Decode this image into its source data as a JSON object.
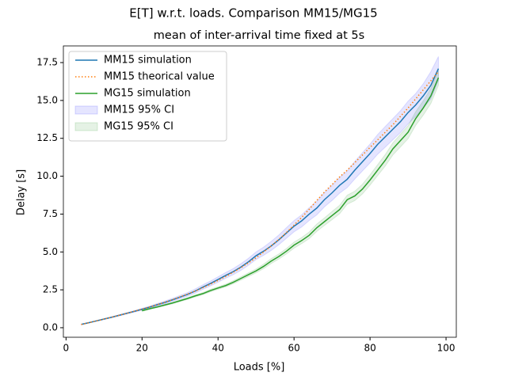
{
  "chart_data": {
    "type": "line",
    "suptitle": "E[T] w.r.t. loads. Comparison MM15/MG15",
    "title": "mean of inter-arrival time fixed at 5s",
    "xlabel": "Loads [%]",
    "ylabel": "Delay [s]",
    "xlim": [
      -0.7,
      102.7
    ],
    "ylim": [
      -0.63,
      18.6
    ],
    "xticks": [
      0,
      20,
      40,
      60,
      80,
      100
    ],
    "yticks": [
      {
        "value": 0,
        "label": "0.0"
      },
      2.5,
      {
        "value": 5,
        "label": "5.0"
      },
      7.5,
      {
        "value": 10,
        "label": "10.0"
      },
      12.5,
      {
        "value": 15,
        "label": "15.0"
      },
      17.5
    ],
    "legend": "upper left",
    "series": [
      {
        "name": "MM15 simulation",
        "color": "#1f77b4",
        "style": "solid",
        "x": [
          4,
          6,
          8,
          10,
          12,
          14,
          16,
          18,
          20,
          22,
          24,
          26,
          28,
          30,
          32,
          34,
          36,
          38,
          40,
          42,
          44,
          46,
          48,
          50,
          52,
          54,
          56,
          58,
          60,
          62,
          64,
          66,
          68,
          70,
          72,
          74,
          76,
          78,
          80,
          82,
          84,
          86,
          88,
          90,
          92,
          94,
          96,
          98
        ],
        "values": [
          0.22,
          0.33,
          0.45,
          0.57,
          0.69,
          0.82,
          0.95,
          1.08,
          1.22,
          1.36,
          1.52,
          1.67,
          1.84,
          2.02,
          2.2,
          2.42,
          2.68,
          2.92,
          3.18,
          3.45,
          3.7,
          4.0,
          4.35,
          4.75,
          5.05,
          5.4,
          5.8,
          6.25,
          6.7,
          7.05,
          7.5,
          7.9,
          8.45,
          8.9,
          9.4,
          9.8,
          10.4,
          10.95,
          11.5,
          12.1,
          12.6,
          13.1,
          13.6,
          14.2,
          14.7,
          15.3,
          16.0,
          17.1
        ]
      },
      {
        "name": "MM15 theorical value",
        "color": "#ff7f0e",
        "style": "dotted",
        "x": [
          4,
          6,
          8,
          10,
          12,
          14,
          16,
          18,
          20,
          22,
          24,
          26,
          28,
          30,
          32,
          34,
          36,
          38,
          40,
          42,
          44,
          46,
          48,
          50,
          52,
          54,
          56,
          58,
          60,
          62,
          64,
          66,
          68,
          70,
          72,
          74,
          76,
          78,
          80,
          82,
          84,
          86,
          88,
          90,
          92,
          94,
          96,
          98
        ],
        "values": [
          0.21,
          0.33,
          0.45,
          0.57,
          0.69,
          0.82,
          0.95,
          1.09,
          1.23,
          1.37,
          1.52,
          1.68,
          1.85,
          2.03,
          2.22,
          2.42,
          2.64,
          2.87,
          3.12,
          3.38,
          3.66,
          3.96,
          4.28,
          4.62,
          5.0,
          5.4,
          5.83,
          6.28,
          6.77,
          7.28,
          7.82,
          8.4,
          8.95,
          9.45,
          9.95,
          10.4,
          10.9,
          11.4,
          11.9,
          12.4,
          12.9,
          13.4,
          13.95,
          14.5,
          15.1,
          15.7,
          16.3,
          16.9
        ]
      },
      {
        "name": "MG15 simulation",
        "color": "#2ca02c",
        "style": "solid",
        "x": [
          20,
          22,
          24,
          26,
          28,
          30,
          32,
          34,
          36,
          38,
          40,
          42,
          44,
          46,
          48,
          50,
          52,
          54,
          56,
          58,
          60,
          62,
          64,
          66,
          68,
          70,
          72,
          74,
          76,
          78,
          80,
          82,
          84,
          86,
          88,
          90,
          92,
          94,
          96,
          98
        ],
        "values": [
          1.12,
          1.25,
          1.37,
          1.5,
          1.63,
          1.78,
          1.93,
          2.1,
          2.25,
          2.45,
          2.62,
          2.78,
          3.0,
          3.25,
          3.5,
          3.75,
          4.05,
          4.4,
          4.7,
          5.05,
          5.45,
          5.75,
          6.1,
          6.6,
          7.0,
          7.4,
          7.8,
          8.45,
          8.7,
          9.15,
          9.75,
          10.4,
          11.05,
          11.8,
          12.35,
          12.9,
          13.8,
          14.5,
          15.3,
          16.5
        ]
      },
      {
        "name": "MM15 95% CI",
        "color": "#0000ff",
        "style": "band",
        "x": [
          4,
          6,
          8,
          10,
          12,
          14,
          16,
          18,
          20,
          22,
          24,
          26,
          28,
          30,
          32,
          34,
          36,
          38,
          40,
          42,
          44,
          46,
          48,
          50,
          52,
          54,
          56,
          58,
          60,
          62,
          64,
          66,
          68,
          70,
          72,
          74,
          76,
          78,
          80,
          82,
          84,
          86,
          88,
          90,
          92,
          94,
          96,
          98
        ],
        "lower": [
          0.2,
          0.31,
          0.43,
          0.54,
          0.66,
          0.78,
          0.91,
          1.03,
          1.16,
          1.29,
          1.44,
          1.58,
          1.74,
          1.91,
          2.08,
          2.28,
          2.53,
          2.76,
          3.0,
          3.26,
          3.5,
          3.78,
          4.12,
          4.5,
          4.78,
          5.1,
          5.48,
          5.9,
          6.33,
          6.65,
          7.08,
          7.45,
          7.98,
          8.4,
          8.88,
          9.25,
          9.82,
          10.35,
          10.88,
          11.45,
          11.92,
          12.4,
          12.88,
          13.45,
          13.95,
          14.5,
          15.1,
          16.3
        ],
        "upper": [
          0.24,
          0.35,
          0.47,
          0.6,
          0.72,
          0.86,
          0.99,
          1.13,
          1.28,
          1.43,
          1.6,
          1.76,
          1.94,
          2.13,
          2.32,
          2.56,
          2.83,
          3.08,
          3.36,
          3.64,
          3.9,
          4.22,
          4.58,
          5.0,
          5.32,
          5.7,
          6.12,
          6.6,
          7.07,
          7.45,
          7.92,
          8.35,
          8.92,
          9.4,
          9.92,
          10.35,
          10.98,
          11.55,
          12.12,
          12.75,
          13.28,
          13.8,
          14.32,
          14.95,
          15.45,
          16.1,
          16.9,
          17.9
        ]
      },
      {
        "name": "MG15 95% CI",
        "color": "#008000",
        "style": "band",
        "x": [
          20,
          22,
          24,
          26,
          28,
          30,
          32,
          34,
          36,
          38,
          40,
          42,
          44,
          46,
          48,
          50,
          52,
          54,
          56,
          58,
          60,
          62,
          64,
          66,
          68,
          70,
          72,
          74,
          76,
          78,
          80,
          82,
          84,
          86,
          88,
          90,
          92,
          94,
          96,
          98
        ],
        "lower": [
          1.09,
          1.21,
          1.33,
          1.45,
          1.58,
          1.72,
          1.87,
          2.03,
          2.18,
          2.37,
          2.54,
          2.69,
          2.9,
          3.14,
          3.38,
          3.62,
          3.9,
          4.24,
          4.53,
          4.87,
          5.25,
          5.55,
          5.88,
          6.36,
          6.75,
          7.13,
          7.52,
          8.15,
          8.39,
          8.83,
          9.41,
          10.04,
          10.67,
          11.4,
          11.93,
          12.47,
          13.35,
          14.03,
          14.8,
          16.0
        ],
        "upper": [
          1.15,
          1.29,
          1.41,
          1.55,
          1.68,
          1.84,
          1.99,
          2.17,
          2.32,
          2.53,
          2.7,
          2.87,
          3.1,
          3.36,
          3.62,
          3.88,
          4.2,
          4.56,
          4.87,
          5.23,
          5.65,
          5.95,
          6.32,
          6.84,
          7.25,
          7.67,
          8.08,
          8.75,
          9.01,
          9.47,
          10.09,
          10.76,
          11.43,
          12.2,
          12.77,
          13.33,
          14.25,
          14.97,
          15.8,
          17.0
        ]
      }
    ]
  }
}
